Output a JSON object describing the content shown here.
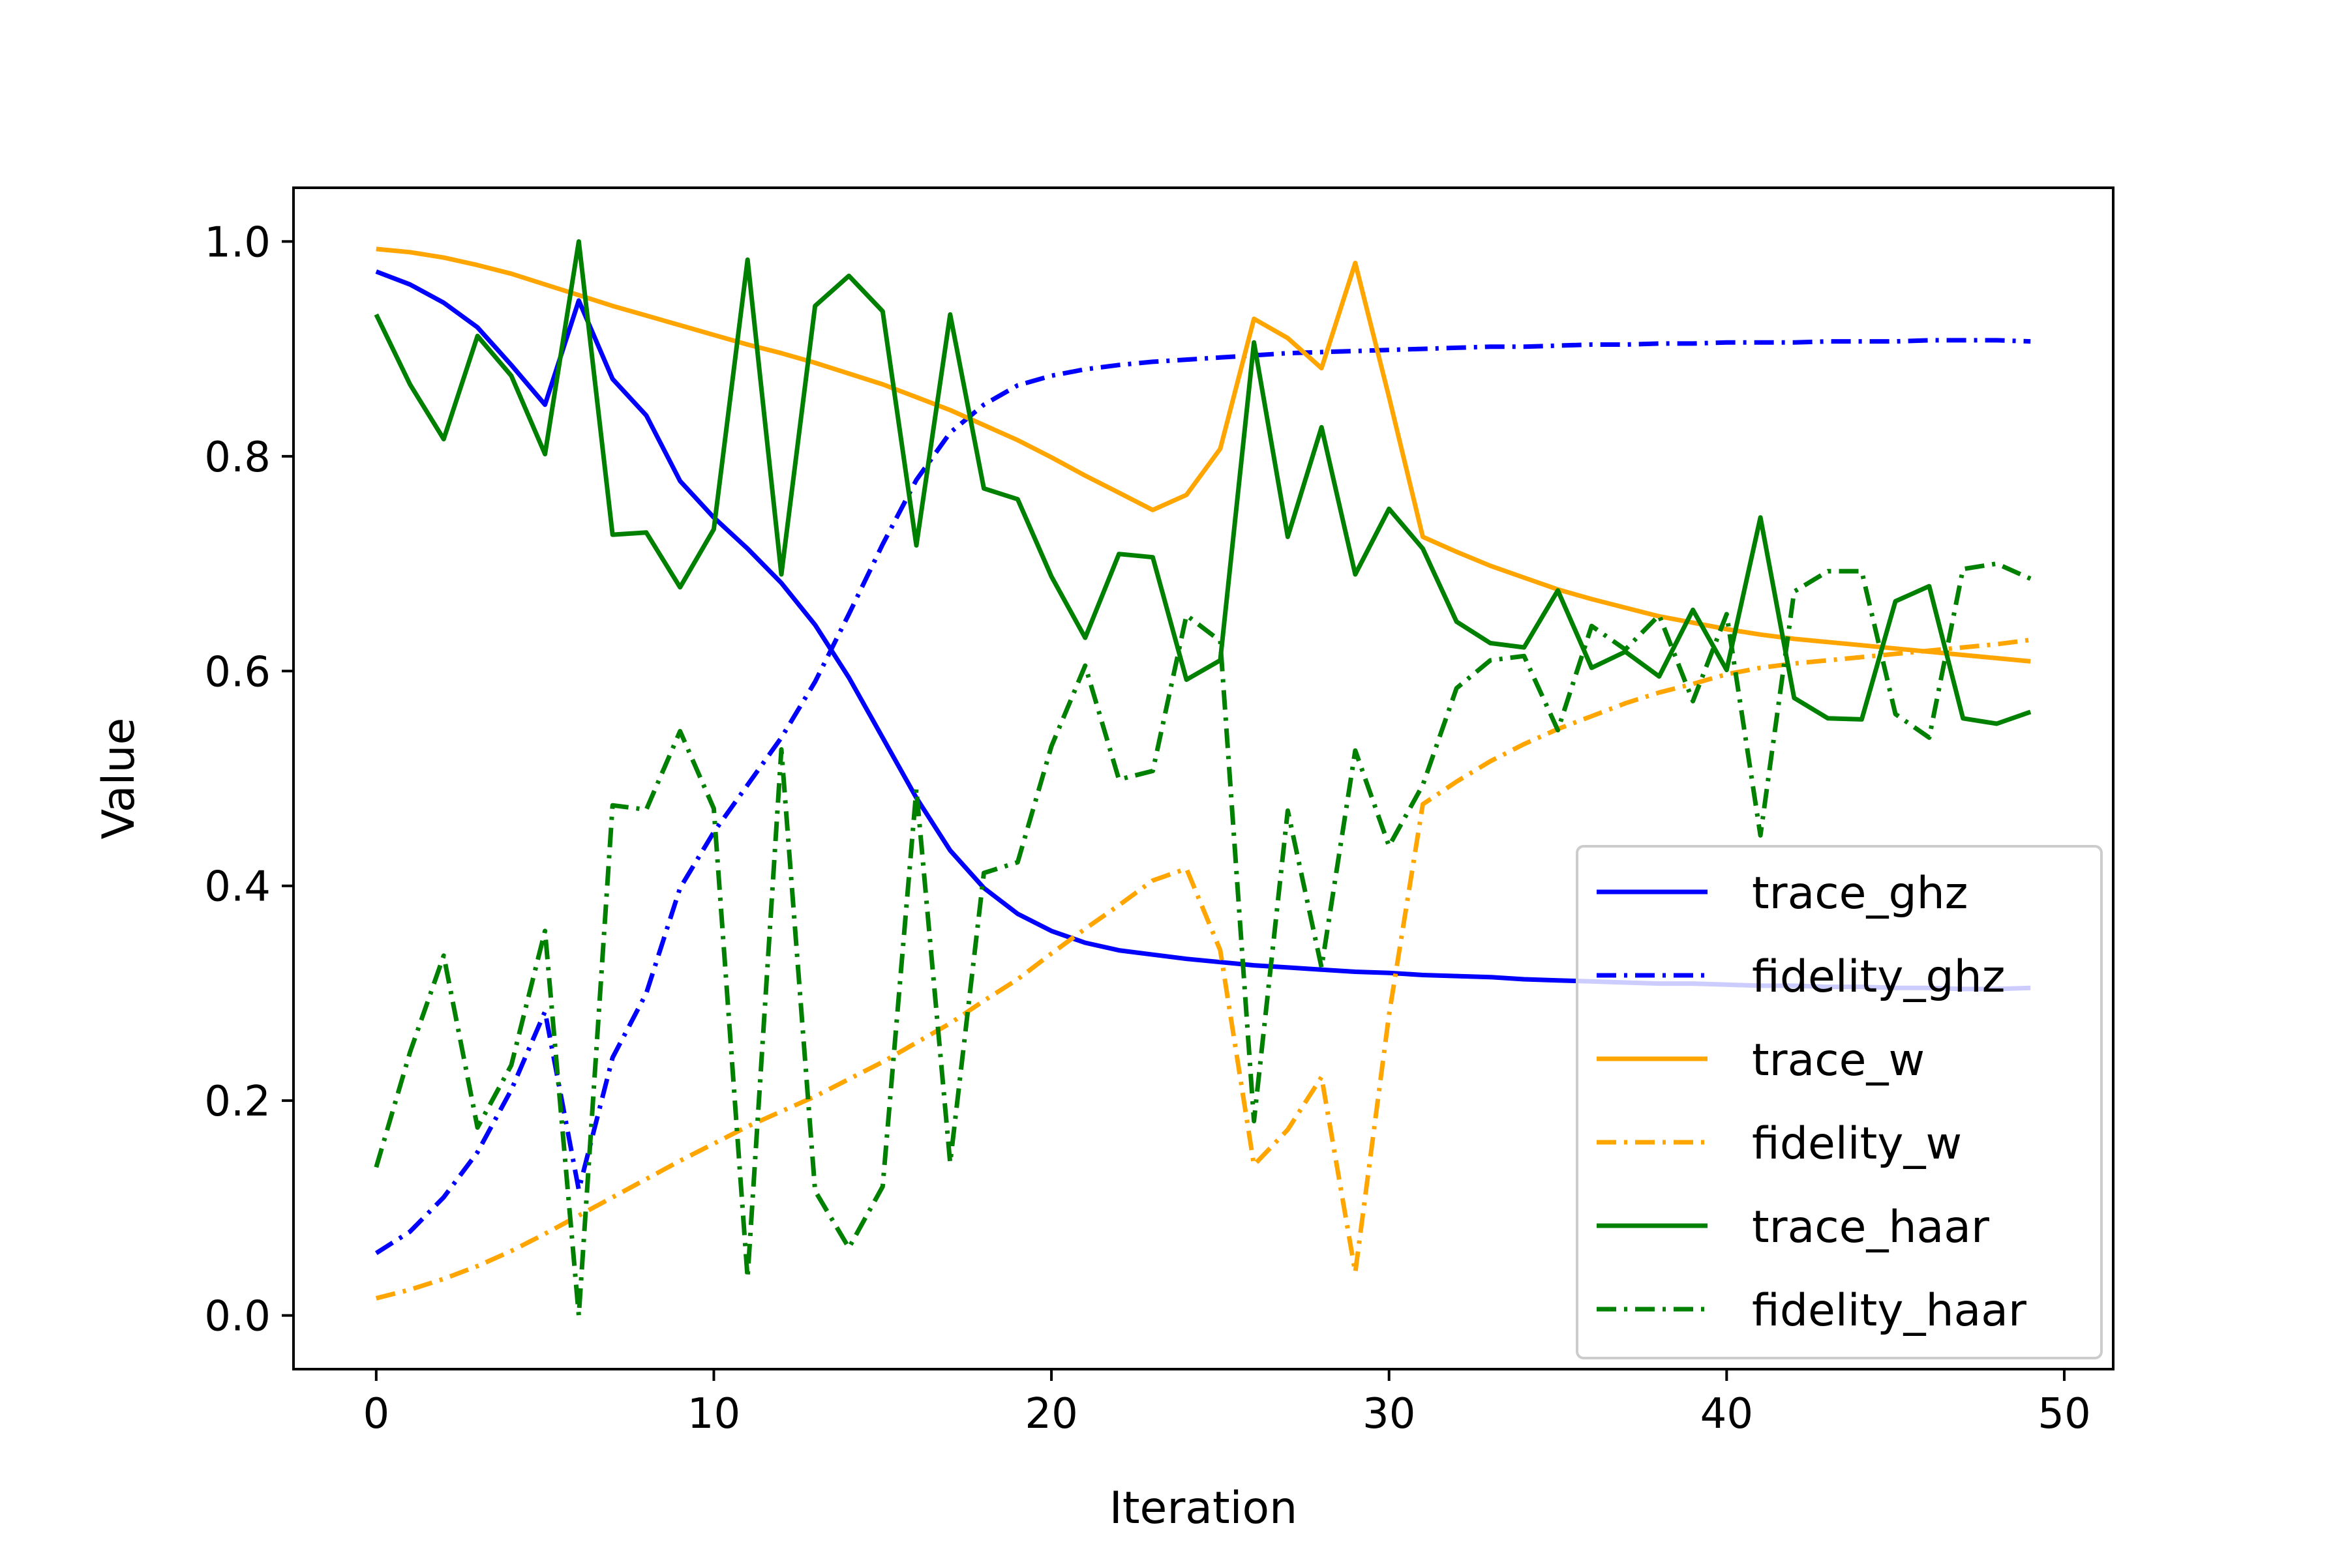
{
  "chart_data": {
    "type": "line",
    "title": "",
    "xlabel": "Iteration",
    "ylabel": "Value",
    "xlim": [
      -2.45,
      51.45
    ],
    "ylim": [
      -0.05,
      1.05
    ],
    "xticks": [
      0,
      10,
      20,
      30,
      40,
      50
    ],
    "xtick_labels": [
      "0",
      "10",
      "20",
      "30",
      "40",
      "50"
    ],
    "yticks": [
      0.0,
      0.2,
      0.4,
      0.6,
      0.8,
      1.0
    ],
    "ytick_labels": [
      "0.0",
      "0.2",
      "0.4",
      "0.6",
      "0.8",
      "1.0"
    ],
    "grid": false,
    "legend_position": "lower-right",
    "x": [
      0,
      1,
      2,
      3,
      4,
      5,
      6,
      7,
      8,
      9,
      10,
      11,
      12,
      13,
      14,
      15,
      16,
      17,
      18,
      19,
      20,
      21,
      22,
      23,
      24,
      25,
      26,
      27,
      28,
      29,
      30,
      31,
      32,
      33,
      34,
      35,
      36,
      37,
      38,
      39,
      40,
      41,
      42,
      43,
      44,
      45,
      46,
      47,
      48,
      49
    ],
    "series": [
      {
        "name": "trace_ghz",
        "color": "#0000ff",
        "linestyle": "solid",
        "values": [
          0.972,
          0.96,
          0.943,
          0.92,
          0.885,
          0.848,
          0.945,
          0.872,
          0.838,
          0.777,
          0.743,
          0.714,
          0.682,
          0.643,
          0.594,
          0.538,
          0.482,
          0.433,
          0.398,
          0.374,
          0.358,
          0.347,
          0.34,
          0.336,
          0.332,
          0.329,
          0.326,
          0.324,
          0.322,
          0.32,
          0.319,
          0.317,
          0.316,
          0.315,
          0.313,
          0.312,
          0.311,
          0.31,
          0.309,
          0.309,
          0.308,
          0.307,
          0.307,
          0.306,
          0.306,
          0.305,
          0.305,
          0.304,
          0.304,
          0.305
        ]
      },
      {
        "name": "fidelity_ghz",
        "color": "#0000ff",
        "linestyle": "dashdot",
        "values": [
          0.058,
          0.078,
          0.11,
          0.152,
          0.21,
          0.283,
          0.117,
          0.24,
          0.3,
          0.398,
          0.45,
          0.494,
          0.538,
          0.59,
          0.653,
          0.718,
          0.778,
          0.822,
          0.848,
          0.866,
          0.875,
          0.881,
          0.885,
          0.888,
          0.89,
          0.892,
          0.894,
          0.896,
          0.897,
          0.898,
          0.899,
          0.9,
          0.901,
          0.902,
          0.902,
          0.903,
          0.904,
          0.904,
          0.905,
          0.905,
          0.906,
          0.906,
          0.906,
          0.907,
          0.907,
          0.907,
          0.908,
          0.908,
          0.908,
          0.907
        ]
      },
      {
        "name": "trace_w",
        "color": "#ffa500",
        "linestyle": "solid",
        "values": [
          0.993,
          0.99,
          0.985,
          0.978,
          0.97,
          0.96,
          0.95,
          0.94,
          0.931,
          0.922,
          0.913,
          0.904,
          0.896,
          0.887,
          0.877,
          0.867,
          0.855,
          0.843,
          0.829,
          0.815,
          0.799,
          0.782,
          0.766,
          0.75,
          0.764,
          0.807,
          0.928,
          0.91,
          0.882,
          0.98,
          0.855,
          0.725,
          0.711,
          0.698,
          0.687,
          0.676,
          0.667,
          0.659,
          0.651,
          0.645,
          0.639,
          0.634,
          0.63,
          0.627,
          0.624,
          0.621,
          0.618,
          0.615,
          0.612,
          0.609
        ]
      },
      {
        "name": "fidelity_w",
        "color": "#ffa500",
        "linestyle": "dashdot",
        "values": [
          0.016,
          0.024,
          0.034,
          0.046,
          0.06,
          0.076,
          0.093,
          0.11,
          0.127,
          0.144,
          0.16,
          0.176,
          0.19,
          0.204,
          0.22,
          0.236,
          0.254,
          0.272,
          0.293,
          0.313,
          0.337,
          0.36,
          0.382,
          0.405,
          0.416,
          0.34,
          0.14,
          0.173,
          0.222,
          0.04,
          0.28,
          0.476,
          0.497,
          0.516,
          0.532,
          0.546,
          0.558,
          0.57,
          0.58,
          0.588,
          0.597,
          0.603,
          0.607,
          0.61,
          0.613,
          0.616,
          0.619,
          0.622,
          0.625,
          0.629
        ]
      },
      {
        "name": "trace_haar",
        "color": "#008000",
        "linestyle": "solid",
        "values": [
          0.932,
          0.867,
          0.816,
          0.912,
          0.875,
          0.802,
          1.0,
          0.727,
          0.729,
          0.678,
          0.732,
          0.983,
          0.69,
          0.94,
          0.968,
          0.935,
          0.717,
          0.932,
          0.77,
          0.76,
          0.688,
          0.631,
          0.709,
          0.706,
          0.592,
          0.61,
          0.906,
          0.725,
          0.827,
          0.69,
          0.751,
          0.714,
          0.646,
          0.626,
          0.622,
          0.675,
          0.603,
          0.618,
          0.595,
          0.657,
          0.601,
          0.743,
          0.575,
          0.556,
          0.555,
          0.665,
          0.679,
          0.556,
          0.551,
          0.562
        ]
      },
      {
        "name": "fidelity_haar",
        "color": "#008000",
        "linestyle": "dashdot",
        "values": [
          0.138,
          0.245,
          0.335,
          0.175,
          0.233,
          0.358,
          0.0,
          0.475,
          0.471,
          0.544,
          0.472,
          0.035,
          0.527,
          0.116,
          0.063,
          0.12,
          0.49,
          0.142,
          0.412,
          0.422,
          0.53,
          0.605,
          0.499,
          0.507,
          0.652,
          0.628,
          0.181,
          0.47,
          0.324,
          0.526,
          0.437,
          0.494,
          0.584,
          0.61,
          0.614,
          0.545,
          0.642,
          0.62,
          0.652,
          0.572,
          0.653,
          0.447,
          0.674,
          0.693,
          0.693,
          0.56,
          0.538,
          0.695,
          0.7,
          0.686
        ]
      }
    ]
  }
}
